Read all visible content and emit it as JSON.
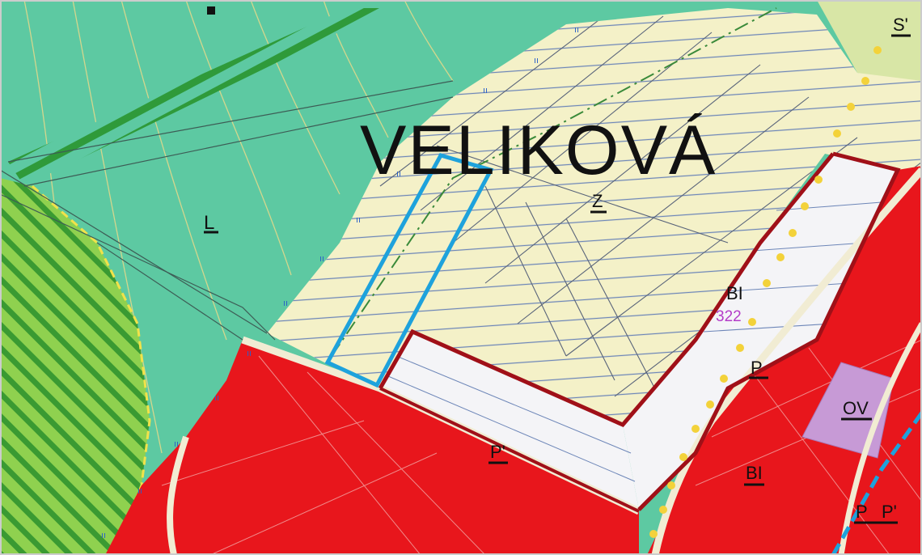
{
  "map": {
    "place_name": "VELIKOVÁ",
    "colors": {
      "forest": "#5dc9a2",
      "meadow_green": "#8fd14f",
      "hatch_green": "#2f9a3a",
      "built_red": "#e8161c",
      "planned_cream": "#f4f1c8",
      "planned_white": "#f4f4f7",
      "boundary_darkred": "#a01018",
      "selection_blue": "#1ea2dc",
      "civic_purple": "#c79ad6",
      "road_cream": "#f1ecd3",
      "parcel_number": "#b43cc8",
      "light_green": "#d8e6a6"
    },
    "labels": {
      "forest_code": "L",
      "meadow_code": "Z",
      "housing_code": "BI",
      "parcel_number": "322",
      "business_code_1": "P",
      "business_code_2": "P'",
      "civic_code": "OV",
      "housing_code_2": "BI",
      "business_code_3": "P",
      "business_code_4": "P'",
      "corner_code": "S'"
    },
    "icons": {
      "selection": "selection-outline",
      "boundary": "zone-boundary"
    }
  }
}
